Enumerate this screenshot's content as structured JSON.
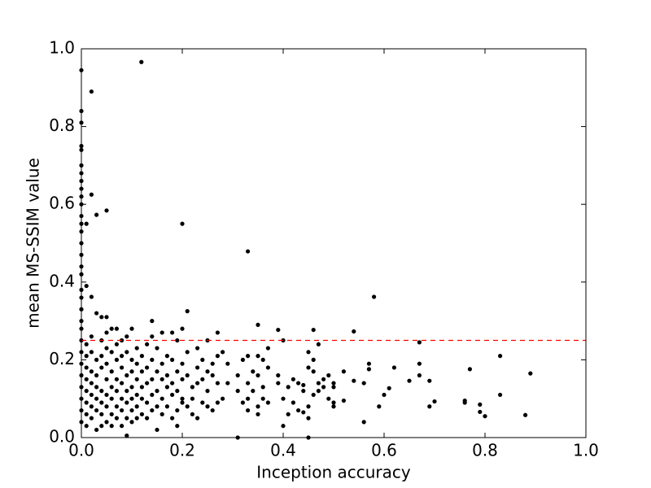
{
  "chart_data": {
    "type": "scatter",
    "xlabel": "Inception accuracy",
    "ylabel": "mean MS-SSIM value",
    "color": "#000000",
    "xlim": [
      0,
      1
    ],
    "ylim": [
      0,
      1
    ],
    "xticks": [
      {
        "value": 0,
        "label": "0.0"
      },
      0.2,
      0.4,
      0.6,
      0.8,
      {
        "value": 1,
        "label": "1.0"
      }
    ],
    "yticks": [
      {
        "value": 0,
        "label": "0.0"
      },
      0.2,
      0.4,
      0.6,
      0.8,
      {
        "value": 1,
        "label": "1.0"
      }
    ],
    "reference_line": {
      "value": 0.25,
      "color": "#ff0000",
      "style": "dashed"
    },
    "x": [
      0,
      0,
      0,
      0,
      0,
      0,
      0,
      0,
      0,
      0,
      0,
      0,
      0,
      0,
      0,
      0,
      0,
      0,
      0,
      0,
      0,
      0,
      0,
      0,
      0,
      0,
      0,
      0,
      0,
      0,
      0,
      0.01,
      0.01,
      0.01,
      0.01,
      0.01,
      0.01,
      0.01,
      0.01,
      0.01,
      0.01,
      0.02,
      0.02,
      0.02,
      0.02,
      0.02,
      0.02,
      0.02,
      0.02,
      0.02,
      0.02,
      0.03,
      0.03,
      0.03,
      0.03,
      0.03,
      0.03,
      0.03,
      0.03,
      0.04,
      0.04,
      0.04,
      0.04,
      0.04,
      0.04,
      0.04,
      0.04,
      0.05,
      0.05,
      0.05,
      0.05,
      0.05,
      0.05,
      0.05,
      0.05,
      0.05,
      0.06,
      0.06,
      0.06,
      0.06,
      0.06,
      0.06,
      0.06,
      0.07,
      0.07,
      0.07,
      0.07,
      0.07,
      0.07,
      0.07,
      0.08,
      0.08,
      0.08,
      0.08,
      0.08,
      0.08,
      0.08,
      0.09,
      0.09,
      0.09,
      0.09,
      0.09,
      0.09,
      0.09,
      0.1,
      0.1,
      0.1,
      0.1,
      0.1,
      0.1,
      0.1,
      0.11,
      0.11,
      0.11,
      0.11,
      0.11,
      0.11,
      0.119,
      0.12,
      0.12,
      0.12,
      0.12,
      0.12,
      0.13,
      0.13,
      0.13,
      0.13,
      0.13,
      0.14,
      0.14,
      0.14,
      0.14,
      0.14,
      0.14,
      0.15,
      0.15,
      0.15,
      0.15,
      0.15,
      0.16,
      0.16,
      0.16,
      0.16,
      0.16,
      0.17,
      0.17,
      0.17,
      0.17,
      0.18,
      0.18,
      0.18,
      0.18,
      0.18,
      0.19,
      0.19,
      0.19,
      0.19,
      0.19,
      0.2,
      0.2,
      0.2,
      0.2,
      0.2,
      0.2,
      0.21,
      0.21,
      0.21,
      0.21,
      0.22,
      0.22,
      0.22,
      0.23,
      0.23,
      0.23,
      0.23,
      0.24,
      0.24,
      0.24,
      0.25,
      0.25,
      0.25,
      0.25,
      0.26,
      0.26,
      0.26,
      0.27,
      0.27,
      0.27,
      0.27,
      0.28,
      0.28,
      0.29,
      0.29,
      0.31,
      0.31,
      0.31,
      0.32,
      0.32,
      0.33,
      0.33,
      0.33,
      0.33,
      0.33,
      0.34,
      0.34,
      0.35,
      0.35,
      0.35,
      0.35,
      0.35,
      0.36,
      0.36,
      0.36,
      0.37,
      0.37,
      0.37,
      0.39,
      0.39,
      0.39,
      0.4,
      0.4,
      0.4,
      0.41,
      0.41,
      0.42,
      0.42,
      0.43,
      0.43,
      0.44,
      0.44,
      0.44,
      0.45,
      0.45,
      0.45,
      0.45,
      0.45,
      0.46,
      0.46,
      0.46,
      0.46,
      0.47,
      0.47,
      0.47,
      0.48,
      0.48,
      0.49,
      0.49,
      0.5,
      0.5,
      0.5,
      0.5,
      0.52,
      0.52,
      0.54,
      0.54,
      0.56,
      0.56,
      0.57,
      0.57,
      0.58,
      0.59,
      0.6,
      0.61,
      0.62,
      0.65,
      0.67,
      0.67,
      0.67,
      0.69,
      0.69,
      0.7,
      0.76,
      0.76,
      0.77,
      0.79,
      0.79,
      0.8,
      0.83,
      0.83,
      0.88,
      0.89
    ],
    "values": [
      0.945,
      0.84,
      0.81,
      0.75,
      0.74,
      0.7,
      0.68,
      0.66,
      0.64,
      0.62,
      0.6,
      0.57,
      0.55,
      0.53,
      0.5,
      0.47,
      0.44,
      0.42,
      0.38,
      0.36,
      0.33,
      0.3,
      0.28,
      0.25,
      0.22,
      0.19,
      0.16,
      0.13,
      0.1,
      0.07,
      0.04,
      0.55,
      0.39,
      0.24,
      0.21,
      0.18,
      0.15,
      0.12,
      0.09,
      0.06,
      0.03,
      0.89,
      0.625,
      0.362,
      0.26,
      0.22,
      0.17,
      0.14,
      0.11,
      0.08,
      0.05,
      0.573,
      0.32,
      0.2,
      0.16,
      0.13,
      0.1,
      0.07,
      0.02,
      0.31,
      0.25,
      0.21,
      0.18,
      0.12,
      0.09,
      0.06,
      0.03,
      0.584,
      0.31,
      0.27,
      0.23,
      0.19,
      0.15,
      0.11,
      0.08,
      0.04,
      0.28,
      0.22,
      0.17,
      0.13,
      0.1,
      0.06,
      0.03,
      0.28,
      0.24,
      0.2,
      0.15,
      0.12,
      0.08,
      0.05,
      0.25,
      0.21,
      0.18,
      0.14,
      0.1,
      0.07,
      0.03,
      0.26,
      0.22,
      0.16,
      0.12,
      0.09,
      0.05,
      0.005,
      0.28,
      0.2,
      0.17,
      0.13,
      0.1,
      0.07,
      0.04,
      0.23,
      0.19,
      0.15,
      0.11,
      0.08,
      0.05,
      0.966,
      0.21,
      0.17,
      0.13,
      0.1,
      0.06,
      0.24,
      0.18,
      0.14,
      0.09,
      0.05,
      0.3,
      0.26,
      0.2,
      0.15,
      0.11,
      0.07,
      0.23,
      0.17,
      0.12,
      0.08,
      0.02,
      0.27,
      0.19,
      0.15,
      0.1,
      0.06,
      0.21,
      0.16,
      0.13,
      0.08,
      0.27,
      0.2,
      0.14,
      0.11,
      0.05,
      0.25,
      0.17,
      0.12,
      0.07,
      0.03,
      0.55,
      0.28,
      0.19,
      0.15,
      0.1,
      0.09,
      0.325,
      0.22,
      0.16,
      0.08,
      0.13,
      0.1,
      0.06,
      0.23,
      0.18,
      0.14,
      0.05,
      0.2,
      0.15,
      0.09,
      0.25,
      0.17,
      0.12,
      0.08,
      0.19,
      0.16,
      0.07,
      0.27,
      0.21,
      0.14,
      0.09,
      0.22,
      0.1,
      0.19,
      0.14,
      0.16,
      0.12,
      0.0,
      0.2,
      0.09,
      0.479,
      0.21,
      0.14,
      0.1,
      0.07,
      0.17,
      0.12,
      0.29,
      0.21,
      0.16,
      0.08,
      0.06,
      0.2,
      0.13,
      0.1,
      0.23,
      0.18,
      0.09,
      0.277,
      0.16,
      0.14,
      0.25,
      0.1,
      0.03,
      0.13,
      0.06,
      0.15,
      0.09,
      0.07,
      0.14,
      0.12,
      0.065,
      0.135,
      0.22,
      0.18,
      0.08,
      0.05,
      0.0,
      0.277,
      0.2,
      0.11,
      0.17,
      0.24,
      0.14,
      0.12,
      0.15,
      0.13,
      0.16,
      0.1,
      0.14,
      0.13,
      0.09,
      0.08,
      0.17,
      0.095,
      0.273,
      0.146,
      0.14,
      0.04,
      0.19,
      0.176,
      0.362,
      0.08,
      0.11,
      0.127,
      0.18,
      0.146,
      0.245,
      0.19,
      0.16,
      0.146,
      0.08,
      0.093,
      0.095,
      0.09,
      0.176,
      0.085,
      0.066,
      0.055,
      0.21,
      0.11,
      0.058,
      0.165
    ]
  }
}
